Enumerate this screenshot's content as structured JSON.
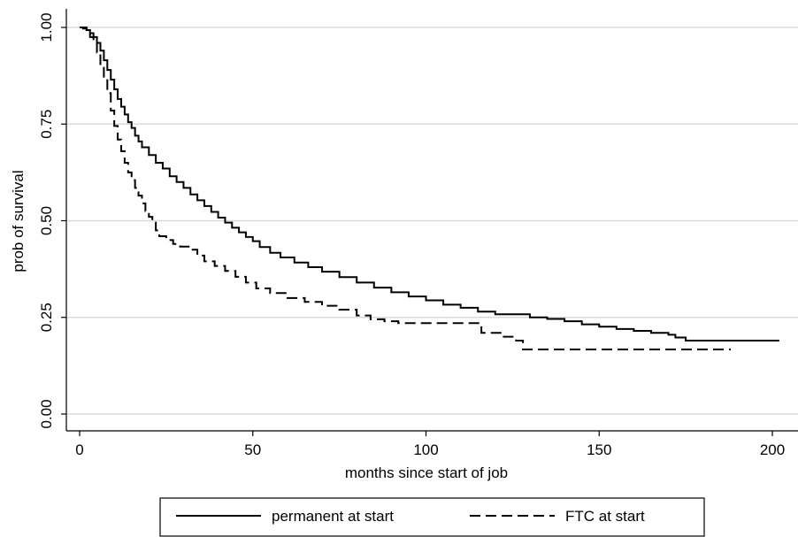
{
  "chart_data": {
    "type": "line",
    "xlabel": "months since start of job",
    "ylabel": "prob of survival",
    "xlim": [
      0,
      200
    ],
    "ylim": [
      0,
      1
    ],
    "x_ticks": [
      "0",
      "50",
      "100",
      "150",
      "200"
    ],
    "y_ticks": [
      "0.00",
      "0.25",
      "0.50",
      "0.75",
      "1.00"
    ],
    "grid": "horizontal",
    "legend_position": "bottom",
    "series": [
      {
        "name": "permanent at start",
        "style": "solid",
        "color": "#000000",
        "points": [
          [
            0,
            1.0
          ],
          [
            1,
            0.997
          ],
          [
            2,
            0.993
          ],
          [
            3,
            0.985
          ],
          [
            4,
            0.975
          ],
          [
            5,
            0.96
          ],
          [
            6,
            0.94
          ],
          [
            7,
            0.915
          ],
          [
            8,
            0.89
          ],
          [
            9,
            0.865
          ],
          [
            10,
            0.84
          ],
          [
            11,
            0.815
          ],
          [
            12,
            0.795
          ],
          [
            13,
            0.775
          ],
          [
            14,
            0.755
          ],
          [
            15,
            0.74
          ],
          [
            16,
            0.72
          ],
          [
            17,
            0.705
          ],
          [
            18,
            0.69
          ],
          [
            20,
            0.67
          ],
          [
            22,
            0.65
          ],
          [
            24,
            0.635
          ],
          [
            26,
            0.615
          ],
          [
            28,
            0.6
          ],
          [
            30,
            0.585
          ],
          [
            32,
            0.568
          ],
          [
            34,
            0.553
          ],
          [
            36,
            0.538
          ],
          [
            38,
            0.523
          ],
          [
            40,
            0.508
          ],
          [
            42,
            0.495
          ],
          [
            44,
            0.482
          ],
          [
            46,
            0.47
          ],
          [
            48,
            0.458
          ],
          [
            50,
            0.447
          ],
          [
            52,
            0.432
          ],
          [
            55,
            0.417
          ],
          [
            58,
            0.405
          ],
          [
            62,
            0.392
          ],
          [
            66,
            0.38
          ],
          [
            70,
            0.368
          ],
          [
            75,
            0.354
          ],
          [
            80,
            0.34
          ],
          [
            85,
            0.327
          ],
          [
            90,
            0.315
          ],
          [
            95,
            0.304
          ],
          [
            100,
            0.294
          ],
          [
            105,
            0.283
          ],
          [
            110,
            0.275
          ],
          [
            115,
            0.265
          ],
          [
            120,
            0.258
          ],
          [
            130,
            0.25
          ],
          [
            135,
            0.246
          ],
          [
            140,
            0.24
          ],
          [
            145,
            0.232
          ],
          [
            150,
            0.226
          ],
          [
            155,
            0.22
          ],
          [
            160,
            0.215
          ],
          [
            165,
            0.21
          ],
          [
            170,
            0.205
          ],
          [
            172,
            0.198
          ],
          [
            175,
            0.19
          ],
          [
            185,
            0.19
          ],
          [
            202,
            0.19
          ]
        ]
      },
      {
        "name": "FTC at start",
        "style": "dashed",
        "color": "#000000",
        "points": [
          [
            0,
            1.0
          ],
          [
            2,
            0.99
          ],
          [
            3,
            0.975
          ],
          [
            4,
            0.96
          ],
          [
            5,
            0.935
          ],
          [
            6,
            0.905
          ],
          [
            7,
            0.87
          ],
          [
            8,
            0.83
          ],
          [
            9,
            0.785
          ],
          [
            10,
            0.745
          ],
          [
            11,
            0.71
          ],
          [
            12,
            0.68
          ],
          [
            13,
            0.65
          ],
          [
            14,
            0.625
          ],
          [
            15,
            0.605
          ],
          [
            16,
            0.585
          ],
          [
            17,
            0.565
          ],
          [
            18,
            0.545
          ],
          [
            19,
            0.525
          ],
          [
            20,
            0.51
          ],
          [
            21,
            0.495
          ],
          [
            22,
            0.475
          ],
          [
            23,
            0.46
          ],
          [
            25,
            0.45
          ],
          [
            27,
            0.44
          ],
          [
            29,
            0.433
          ],
          [
            32,
            0.425
          ],
          [
            34,
            0.41
          ],
          [
            36,
            0.395
          ],
          [
            39,
            0.383
          ],
          [
            42,
            0.37
          ],
          [
            45,
            0.355
          ],
          [
            48,
            0.34
          ],
          [
            51,
            0.325
          ],
          [
            55,
            0.313
          ],
          [
            60,
            0.3
          ],
          [
            65,
            0.29
          ],
          [
            70,
            0.28
          ],
          [
            75,
            0.27
          ],
          [
            80,
            0.255
          ],
          [
            84,
            0.245
          ],
          [
            88,
            0.24
          ],
          [
            92,
            0.235
          ],
          [
            100,
            0.235
          ],
          [
            110,
            0.235
          ],
          [
            115,
            0.235
          ],
          [
            116,
            0.21
          ],
          [
            122,
            0.2
          ],
          [
            126,
            0.19
          ],
          [
            128,
            0.167
          ],
          [
            140,
            0.167
          ],
          [
            160,
            0.167
          ],
          [
            188,
            0.167
          ]
        ]
      }
    ]
  }
}
